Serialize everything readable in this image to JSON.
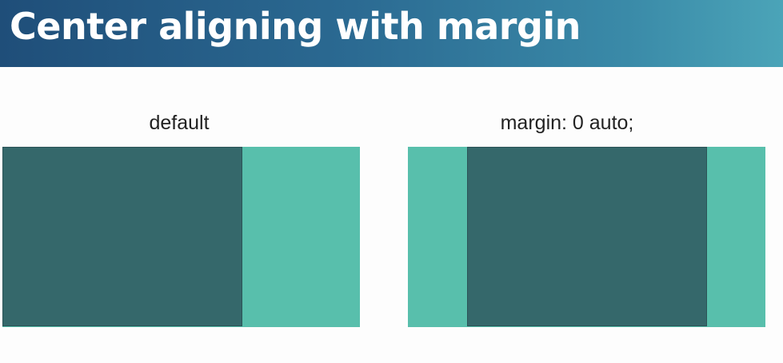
{
  "header": {
    "title": "Center aligning with margin"
  },
  "panels": [
    {
      "label": "default",
      "alignment": "left"
    },
    {
      "label": "margin: 0 auto;",
      "alignment": "center"
    }
  ],
  "colors": {
    "container": "#58bfac",
    "inner_box": "#35686b",
    "header_gradient_start": "#1f4e79",
    "header_gradient_end": "#4ba4b8"
  }
}
